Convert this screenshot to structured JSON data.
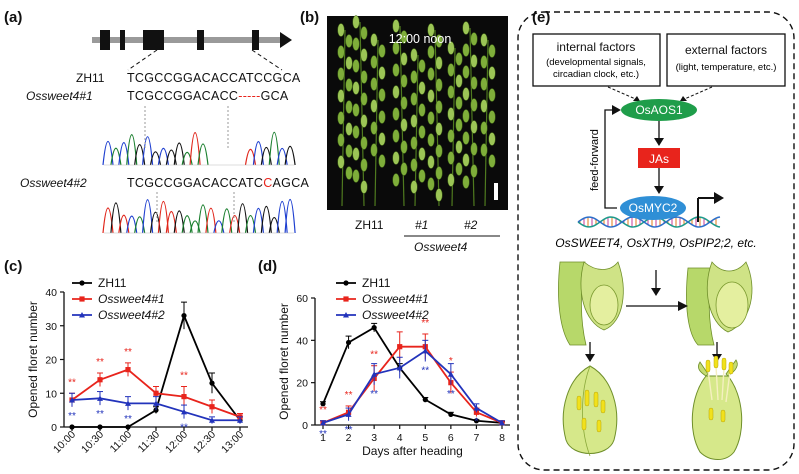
{
  "panels": {
    "a": "(a)",
    "b": "(b)",
    "c": "(c)",
    "d": "(d)",
    "e": "(e)"
  },
  "panel_a": {
    "rows": [
      {
        "label": "ZH11",
        "seq": "TCGCCGGACACCATCCGCA"
      },
      {
        "label": "Ossweet4#1",
        "seq_left": "TCGCCGGACACC",
        "seq_gap": "-----",
        "seq_right": "GCA"
      },
      {
        "label": "Ossweet4#2",
        "seq_left": "TCGCCGGACACCATC",
        "seq_mut": "C",
        "seq_right": "AGCA"
      }
    ]
  },
  "panel_b": {
    "time": "12:00 noon",
    "labels": [
      "ZH11",
      "#1",
      "#2"
    ],
    "group": "Ossweet4"
  },
  "panel_e": {
    "internal_title": "internal factors",
    "internal_sub": "(developmental signals,",
    "internal_sub2": "circadian clock, etc.)",
    "external_title": "external factors",
    "external_sub": "(light, temperature, etc.)",
    "aos": "OsAOS1",
    "jas": "JAs",
    "myc": "OsMYC2",
    "feed": "feed-forward",
    "targets": "OsSWEET4, OsXTH9, OsPIP2;2, etc.",
    "colors": {
      "green": "#1f9d4a",
      "red": "#e8241c",
      "blue": "#2f8fd6"
    }
  },
  "chart_data": [
    {
      "type": "line",
      "ylabel": "Opened floret number",
      "xlabel": "",
      "categories": [
        "10:00",
        "10:30",
        "11:00",
        "11:30",
        "12:00",
        "12:30",
        "13:00"
      ],
      "ylim": [
        0,
        40
      ],
      "yticks": [
        0,
        10,
        20,
        30,
        40
      ],
      "legend": "top-left",
      "series": [
        {
          "name": "ZH11",
          "color": "#000000",
          "values": [
            0,
            0,
            0,
            5,
            33,
            13,
            2
          ],
          "err": [
            0,
            0,
            0,
            1,
            4,
            3,
            1
          ],
          "stars": [
            "",
            "",
            "",
            "",
            "",
            "",
            ""
          ]
        },
        {
          "name": "Ossweet4#1",
          "color": "#e8241c",
          "values": [
            8,
            14,
            17,
            10,
            9,
            6,
            3
          ],
          "err": [
            2,
            2,
            2,
            2,
            3,
            2,
            1
          ],
          "stars": [
            "**",
            "**",
            "**",
            "",
            "**",
            "",
            ""
          ]
        },
        {
          "name": "Ossweet4#2",
          "color": "#2233bb",
          "values": [
            8,
            8.5,
            7,
            7,
            4.5,
            2,
            2
          ],
          "err": [
            2,
            2,
            2,
            2,
            2,
            1,
            1
          ],
          "stars": [
            "**",
            "**",
            "**",
            "",
            "**",
            "",
            ""
          ]
        }
      ]
    },
    {
      "type": "line",
      "ylabel": "Opened floret number",
      "xlabel": "Days after heading",
      "categories": [
        "1",
        "2",
        "3",
        "4",
        "5",
        "6",
        "7",
        "8"
      ],
      "ylim": [
        0,
        60
      ],
      "yticks": [
        0,
        20,
        40,
        60
      ],
      "legend": "top-right",
      "series": [
        {
          "name": "ZH11",
          "color": "#000000",
          "values": [
            10,
            39,
            46,
            27,
            12,
            5,
            2,
            1
          ],
          "err": [
            1,
            3,
            2,
            2,
            1,
            1,
            0.5,
            0.5
          ],
          "stars": [
            "",
            "",
            "",
            "",
            "",
            "",
            "",
            ""
          ]
        },
        {
          "name": "Ossweet4#1",
          "color": "#e8241c",
          "values": [
            1,
            6,
            22,
            37,
            37,
            20,
            6,
            1
          ],
          "err": [
            1,
            3,
            6,
            7,
            6,
            5,
            2,
            1
          ],
          "stars": [
            "**",
            "**",
            "**",
            "",
            "**",
            "*",
            "",
            ""
          ]
        },
        {
          "name": "Ossweet4#2",
          "color": "#2233bb",
          "values": [
            1,
            5,
            24,
            27,
            35,
            24,
            8,
            1
          ],
          "err": [
            1,
            3,
            5,
            5,
            5,
            5,
            2,
            1
          ],
          "stars": [
            "**",
            "**",
            "**",
            "",
            "**",
            "**",
            "*",
            ""
          ]
        }
      ]
    }
  ]
}
